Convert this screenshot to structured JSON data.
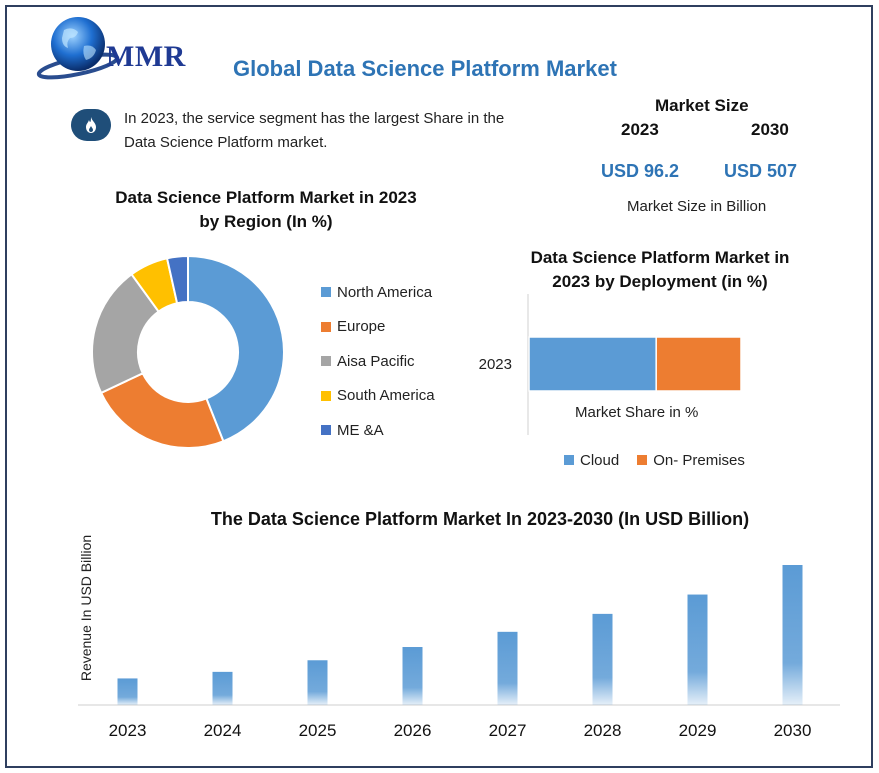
{
  "header": {
    "logo_text": "MMR",
    "title": "Global Data Science Platform Market"
  },
  "info": {
    "text": "In 2023, the service segment has the largest Share in the Data Science Platform market."
  },
  "market_size": {
    "heading": "Market Size",
    "year_start": "2023",
    "year_end": "2030",
    "value_start": "USD 96.2",
    "value_end": "USD 507",
    "note": "Market Size in Billion"
  },
  "colors": {
    "blue": "#5b9bd5",
    "orange": "#ed7d31",
    "gray": "#a5a5a5",
    "yellow": "#ffc000",
    "darkblue": "#4472c4",
    "title_blue": "#2e74b5"
  },
  "chart_data": [
    {
      "type": "pie",
      "title_line1": "Data Science Platform Market in 2023",
      "title_line2": "by Region (In %)",
      "categories": [
        "North America",
        "Europe",
        "Aisa Pacific",
        "South America",
        "ME &A"
      ],
      "values": [
        44,
        24,
        22,
        6.5,
        3.5
      ],
      "colors": [
        "#5b9bd5",
        "#ed7d31",
        "#a5a5a5",
        "#ffc000",
        "#4472c4"
      ],
      "legend": "right"
    },
    {
      "type": "bar",
      "orientation": "horizontal",
      "stacked": true,
      "title_line1": "Data Science Platform Market in",
      "title_line2": "2023 by Deployment (in %)",
      "categories": [
        "2023"
      ],
      "xlabel": "Market Share in %",
      "series": [
        {
          "name": "Cloud",
          "values": [
            60
          ],
          "color": "#5b9bd5"
        },
        {
          "name": "On- Premises",
          "values": [
            40
          ],
          "color": "#ed7d31"
        }
      ],
      "legend": "bottom"
    },
    {
      "type": "bar",
      "title": "The Data Science Platform Market In 2023-2030 (In USD Billion)",
      "ylabel": "Revenue In USD Billion",
      "categories": [
        "2023",
        "2024",
        "2025",
        "2026",
        "2027",
        "2028",
        "2029",
        "2030"
      ],
      "values": [
        96.2,
        120,
        162,
        210,
        265,
        330,
        400,
        507
      ],
      "color": "#5b9bd5"
    }
  ]
}
